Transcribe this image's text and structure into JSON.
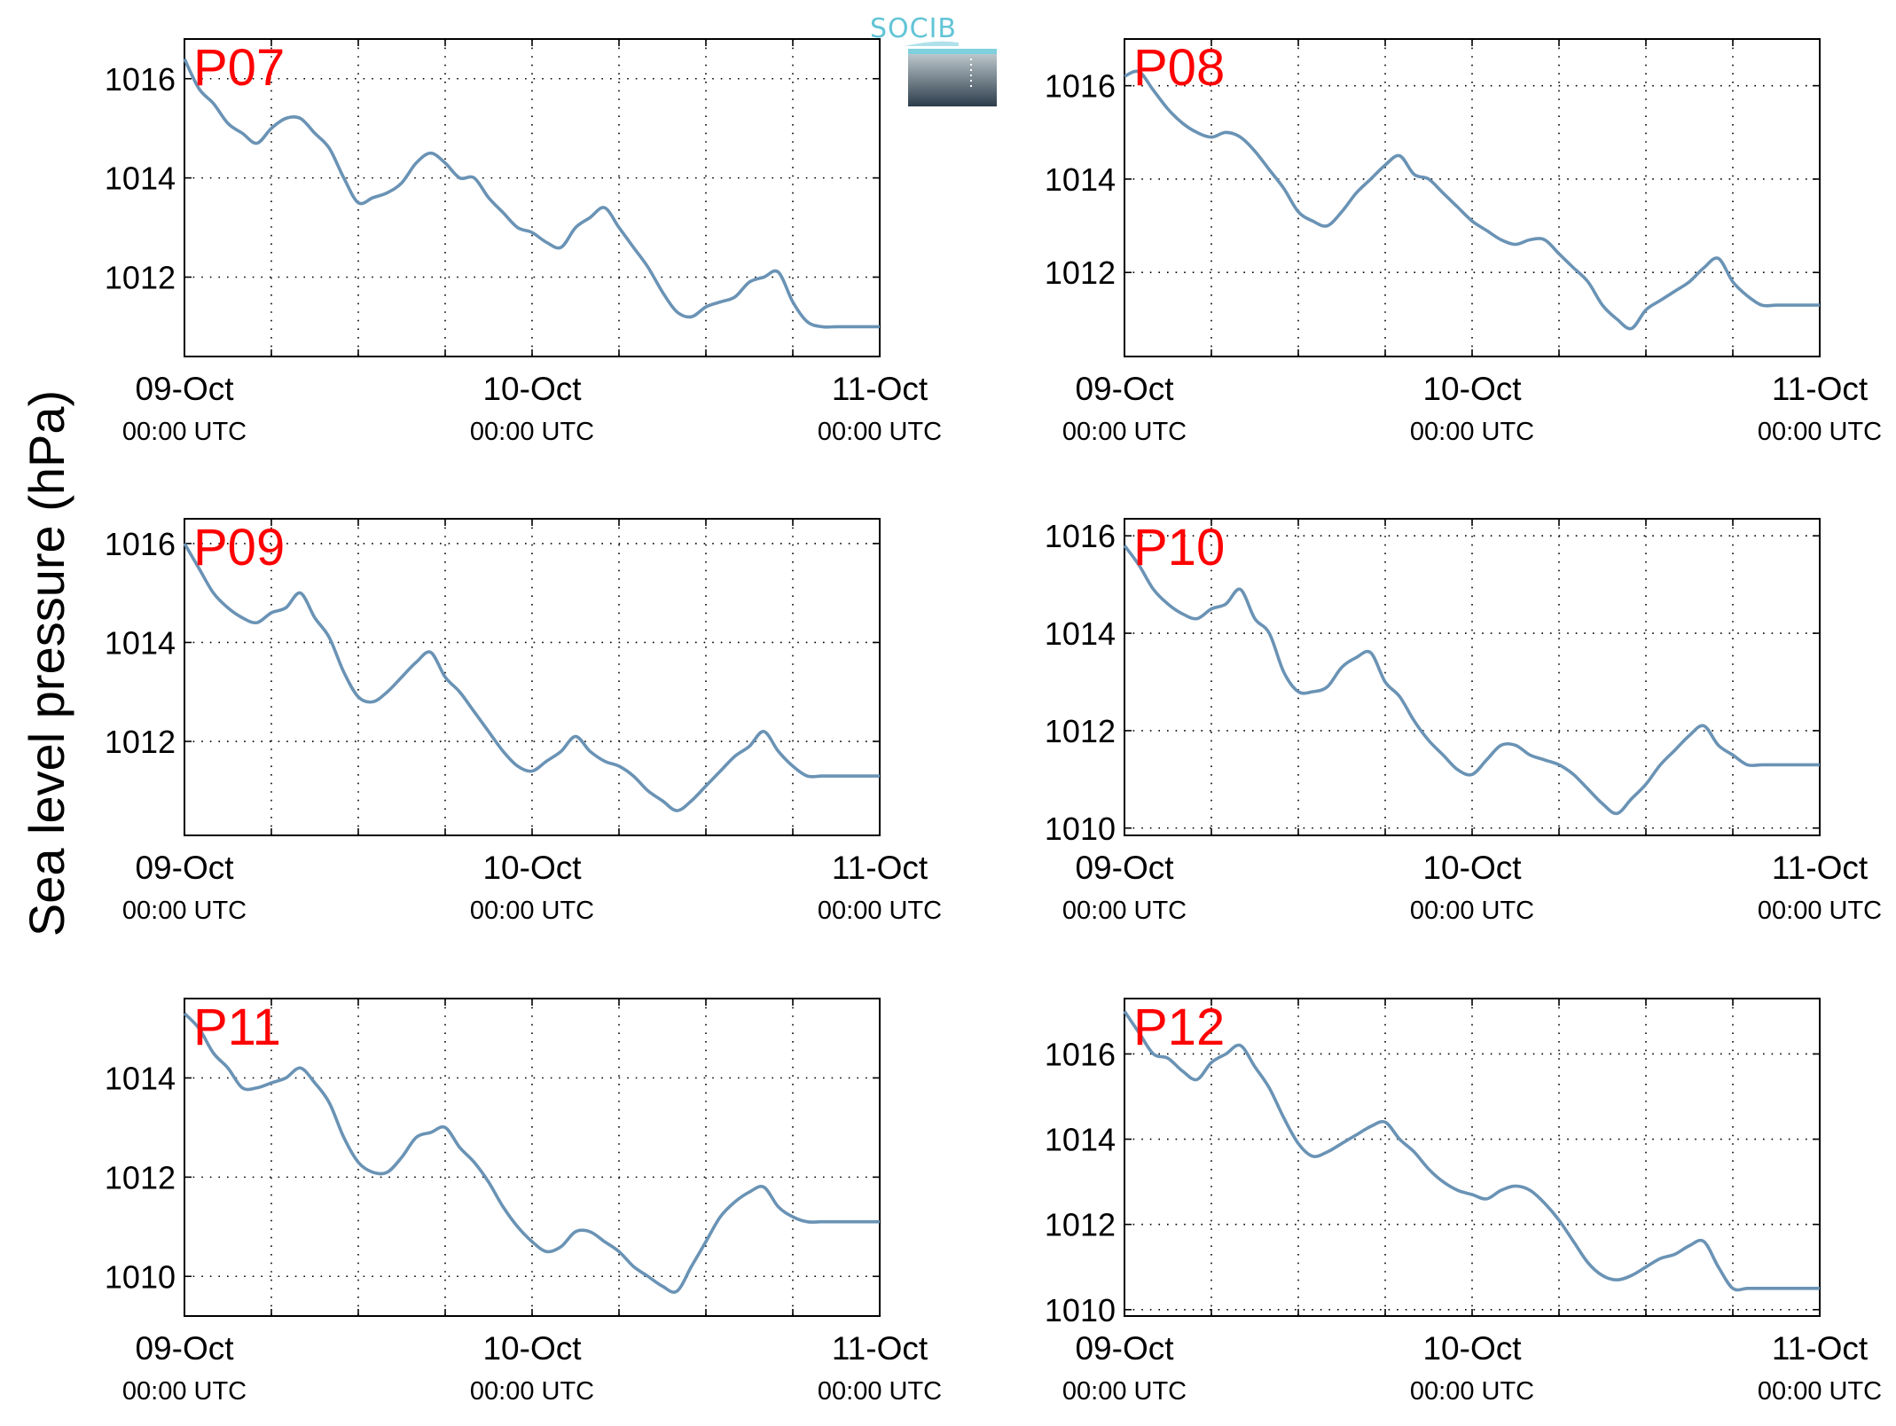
{
  "figure": {
    "ylabel": "Sea level pressure (hPa)",
    "logo_text": "SOCIB",
    "colors": {
      "line": "#6a93b5",
      "panel_label": "#ff0000",
      "axes": "#000000",
      "grid": "#000000",
      "logo_top": "#62c4d6",
      "logo_bottom": "#2c3c4a"
    }
  },
  "chart_data": [
    {
      "type": "line",
      "label": "P07",
      "x_ticks": [
        "09-Oct",
        "10-Oct",
        "11-Oct"
      ],
      "x_tick_sublabel": "00:00 UTC",
      "xlim_hours": [
        0,
        48
      ],
      "ylim": [
        1010.4,
        1016.8
      ],
      "yticks": [
        1012,
        1014,
        1016
      ],
      "grid": true,
      "x_hours": [
        0,
        1,
        2,
        3,
        4,
        5,
        6,
        7,
        8,
        9,
        10,
        11,
        12,
        13,
        14,
        15,
        16,
        17,
        18,
        19,
        20,
        21,
        22,
        23,
        24,
        25,
        26,
        27,
        28,
        29,
        30,
        31,
        32,
        33,
        34,
        35,
        36,
        37,
        38,
        39,
        40,
        41,
        42,
        43,
        44,
        45,
        46,
        47,
        48
      ],
      "values": [
        1016.4,
        1015.8,
        1015.5,
        1015.1,
        1014.9,
        1014.7,
        1015.0,
        1015.2,
        1015.2,
        1014.9,
        1014.6,
        1014.0,
        1013.5,
        1013.6,
        1013.7,
        1013.9,
        1014.3,
        1014.5,
        1014.3,
        1014.0,
        1014.0,
        1013.6,
        1013.3,
        1013.0,
        1012.9,
        1012.7,
        1012.6,
        1013.0,
        1013.2,
        1013.4,
        1013.0,
        1012.6,
        1012.2,
        1011.7,
        1011.3,
        1011.2,
        1011.4,
        1011.5,
        1011.6,
        1011.9,
        1012.0,
        1012.1,
        1011.5,
        1011.1,
        1011.0,
        1011.0,
        1011.0,
        1011.0,
        1011.0
      ]
    },
    {
      "type": "line",
      "label": "P08",
      "x_ticks": [
        "09-Oct",
        "10-Oct",
        "11-Oct"
      ],
      "x_tick_sublabel": "00:00 UTC",
      "xlim_hours": [
        0,
        48
      ],
      "ylim": [
        1010.2,
        1017.0
      ],
      "yticks": [
        1012,
        1014,
        1016
      ],
      "grid": true,
      "x_hours": [
        0,
        1,
        2,
        3,
        4,
        5,
        6,
        7,
        8,
        9,
        10,
        11,
        12,
        13,
        14,
        15,
        16,
        17,
        18,
        19,
        20,
        21,
        22,
        23,
        24,
        25,
        26,
        27,
        28,
        29,
        30,
        31,
        32,
        33,
        34,
        35,
        36,
        37,
        38,
        39,
        40,
        41,
        42,
        43,
        44,
        45,
        46,
        47,
        48
      ],
      "values": [
        1016.2,
        1016.3,
        1015.9,
        1015.5,
        1015.2,
        1015.0,
        1014.9,
        1015.0,
        1014.9,
        1014.6,
        1014.2,
        1013.8,
        1013.3,
        1013.1,
        1013.0,
        1013.3,
        1013.7,
        1014.0,
        1014.3,
        1014.5,
        1014.1,
        1014.0,
        1013.7,
        1013.4,
        1013.1,
        1012.9,
        1012.7,
        1012.6,
        1012.7,
        1012.7,
        1012.4,
        1012.1,
        1011.8,
        1011.3,
        1011.0,
        1010.8,
        1011.2,
        1011.4,
        1011.6,
        1011.8,
        1012.1,
        1012.3,
        1011.8,
        1011.5,
        1011.3,
        1011.3,
        1011.3,
        1011.3,
        1011.3
      ]
    },
    {
      "type": "line",
      "label": "P09",
      "x_ticks": [
        "09-Oct",
        "10-Oct",
        "11-Oct"
      ],
      "x_tick_sublabel": "00:00 UTC",
      "xlim_hours": [
        0,
        48
      ],
      "ylim": [
        1010.1,
        1016.5
      ],
      "yticks": [
        1012,
        1014,
        1016
      ],
      "grid": true,
      "x_hours": [
        0,
        1,
        2,
        3,
        4,
        5,
        6,
        7,
        8,
        9,
        10,
        11,
        12,
        13,
        14,
        15,
        16,
        17,
        18,
        19,
        20,
        21,
        22,
        23,
        24,
        25,
        26,
        27,
        28,
        29,
        30,
        31,
        32,
        33,
        34,
        35,
        36,
        37,
        38,
        39,
        40,
        41,
        42,
        43,
        44,
        45,
        46,
        47,
        48
      ],
      "values": [
        1016.0,
        1015.5,
        1015.0,
        1014.7,
        1014.5,
        1014.4,
        1014.6,
        1014.7,
        1015.0,
        1014.5,
        1014.1,
        1013.4,
        1012.9,
        1012.8,
        1013.0,
        1013.3,
        1013.6,
        1013.8,
        1013.3,
        1013.0,
        1012.6,
        1012.2,
        1011.8,
        1011.5,
        1011.4,
        1011.6,
        1011.8,
        1012.1,
        1011.8,
        1011.6,
        1011.5,
        1011.3,
        1011.0,
        1010.8,
        1010.6,
        1010.8,
        1011.1,
        1011.4,
        1011.7,
        1011.9,
        1012.2,
        1011.8,
        1011.5,
        1011.3,
        1011.3,
        1011.3,
        1011.3,
        1011.3,
        1011.3
      ]
    },
    {
      "type": "line",
      "label": "P10",
      "x_ticks": [
        "09-Oct",
        "10-Oct",
        "11-Oct"
      ],
      "x_tick_sublabel": "00:00 UTC",
      "xlim_hours": [
        0,
        48
      ],
      "ylim": [
        1009.85,
        1016.35
      ],
      "yticks": [
        1010,
        1012,
        1014,
        1016
      ],
      "grid": true,
      "x_hours": [
        0,
        1,
        2,
        3,
        4,
        5,
        6,
        7,
        8,
        9,
        10,
        11,
        12,
        13,
        14,
        15,
        16,
        17,
        18,
        19,
        20,
        21,
        22,
        23,
        24,
        25,
        26,
        27,
        28,
        29,
        30,
        31,
        32,
        33,
        34,
        35,
        36,
        37,
        38,
        39,
        40,
        41,
        42,
        43,
        44,
        45,
        46,
        47,
        48
      ],
      "values": [
        1015.8,
        1015.4,
        1014.9,
        1014.6,
        1014.4,
        1014.3,
        1014.5,
        1014.6,
        1014.9,
        1014.3,
        1014.0,
        1013.2,
        1012.8,
        1012.8,
        1012.9,
        1013.3,
        1013.5,
        1013.6,
        1013.0,
        1012.7,
        1012.2,
        1011.8,
        1011.5,
        1011.2,
        1011.1,
        1011.4,
        1011.7,
        1011.7,
        1011.5,
        1011.4,
        1011.3,
        1011.1,
        1010.8,
        1010.5,
        1010.3,
        1010.6,
        1010.9,
        1011.3,
        1011.6,
        1011.9,
        1012.1,
        1011.7,
        1011.5,
        1011.3,
        1011.3,
        1011.3,
        1011.3,
        1011.3,
        1011.3
      ]
    },
    {
      "type": "line",
      "label": "P11",
      "x_ticks": [
        "09-Oct",
        "10-Oct",
        "11-Oct"
      ],
      "x_tick_sublabel": "00:00 UTC",
      "xlim_hours": [
        0,
        48
      ],
      "ylim": [
        1009.2,
        1015.6
      ],
      "yticks": [
        1010,
        1012,
        1014
      ],
      "grid": true,
      "x_hours": [
        0,
        1,
        2,
        3,
        4,
        5,
        6,
        7,
        8,
        9,
        10,
        11,
        12,
        13,
        14,
        15,
        16,
        17,
        18,
        19,
        20,
        21,
        22,
        23,
        24,
        25,
        26,
        27,
        28,
        29,
        30,
        31,
        32,
        33,
        34,
        35,
        36,
        37,
        38,
        39,
        40,
        41,
        42,
        43,
        44,
        45,
        46,
        47,
        48
      ],
      "values": [
        1015.3,
        1015.0,
        1014.5,
        1014.2,
        1013.8,
        1013.8,
        1013.9,
        1014.0,
        1014.2,
        1013.9,
        1013.5,
        1012.8,
        1012.3,
        1012.1,
        1012.1,
        1012.4,
        1012.8,
        1012.9,
        1013.0,
        1012.6,
        1012.3,
        1011.9,
        1011.4,
        1011.0,
        1010.7,
        1010.5,
        1010.6,
        1010.9,
        1010.9,
        1010.7,
        1010.5,
        1010.2,
        1010.0,
        1009.8,
        1009.7,
        1010.2,
        1010.7,
        1011.2,
        1011.5,
        1011.7,
        1011.8,
        1011.4,
        1011.2,
        1011.1,
        1011.1,
        1011.1,
        1011.1,
        1011.1,
        1011.1
      ]
    },
    {
      "type": "line",
      "label": "P12",
      "x_ticks": [
        "09-Oct",
        "10-Oct",
        "11-Oct"
      ],
      "x_tick_sublabel": "00:00 UTC",
      "xlim_hours": [
        0,
        48
      ],
      "ylim": [
        1009.85,
        1017.3
      ],
      "yticks": [
        1010,
        1012,
        1014,
        1016
      ],
      "grid": true,
      "x_hours": [
        0,
        1,
        2,
        3,
        4,
        5,
        6,
        7,
        8,
        9,
        10,
        11,
        12,
        13,
        14,
        15,
        16,
        17,
        18,
        19,
        20,
        21,
        22,
        23,
        24,
        25,
        26,
        27,
        28,
        29,
        30,
        31,
        32,
        33,
        34,
        35,
        36,
        37,
        38,
        39,
        40,
        41,
        42,
        43,
        44,
        45,
        46,
        47,
        48
      ],
      "values": [
        1017.0,
        1016.5,
        1016.0,
        1015.9,
        1015.6,
        1015.4,
        1015.8,
        1016.0,
        1016.2,
        1015.7,
        1015.2,
        1014.5,
        1013.9,
        1013.6,
        1013.7,
        1013.9,
        1014.1,
        1014.3,
        1014.4,
        1014.0,
        1013.7,
        1013.3,
        1013.0,
        1012.8,
        1012.7,
        1012.6,
        1012.8,
        1012.9,
        1012.8,
        1012.5,
        1012.1,
        1011.6,
        1011.1,
        1010.8,
        1010.7,
        1010.8,
        1011.0,
        1011.2,
        1011.3,
        1011.5,
        1011.6,
        1011.0,
        1010.5,
        1010.5,
        1010.5,
        1010.5,
        1010.5,
        1010.5,
        1010.5
      ]
    }
  ]
}
